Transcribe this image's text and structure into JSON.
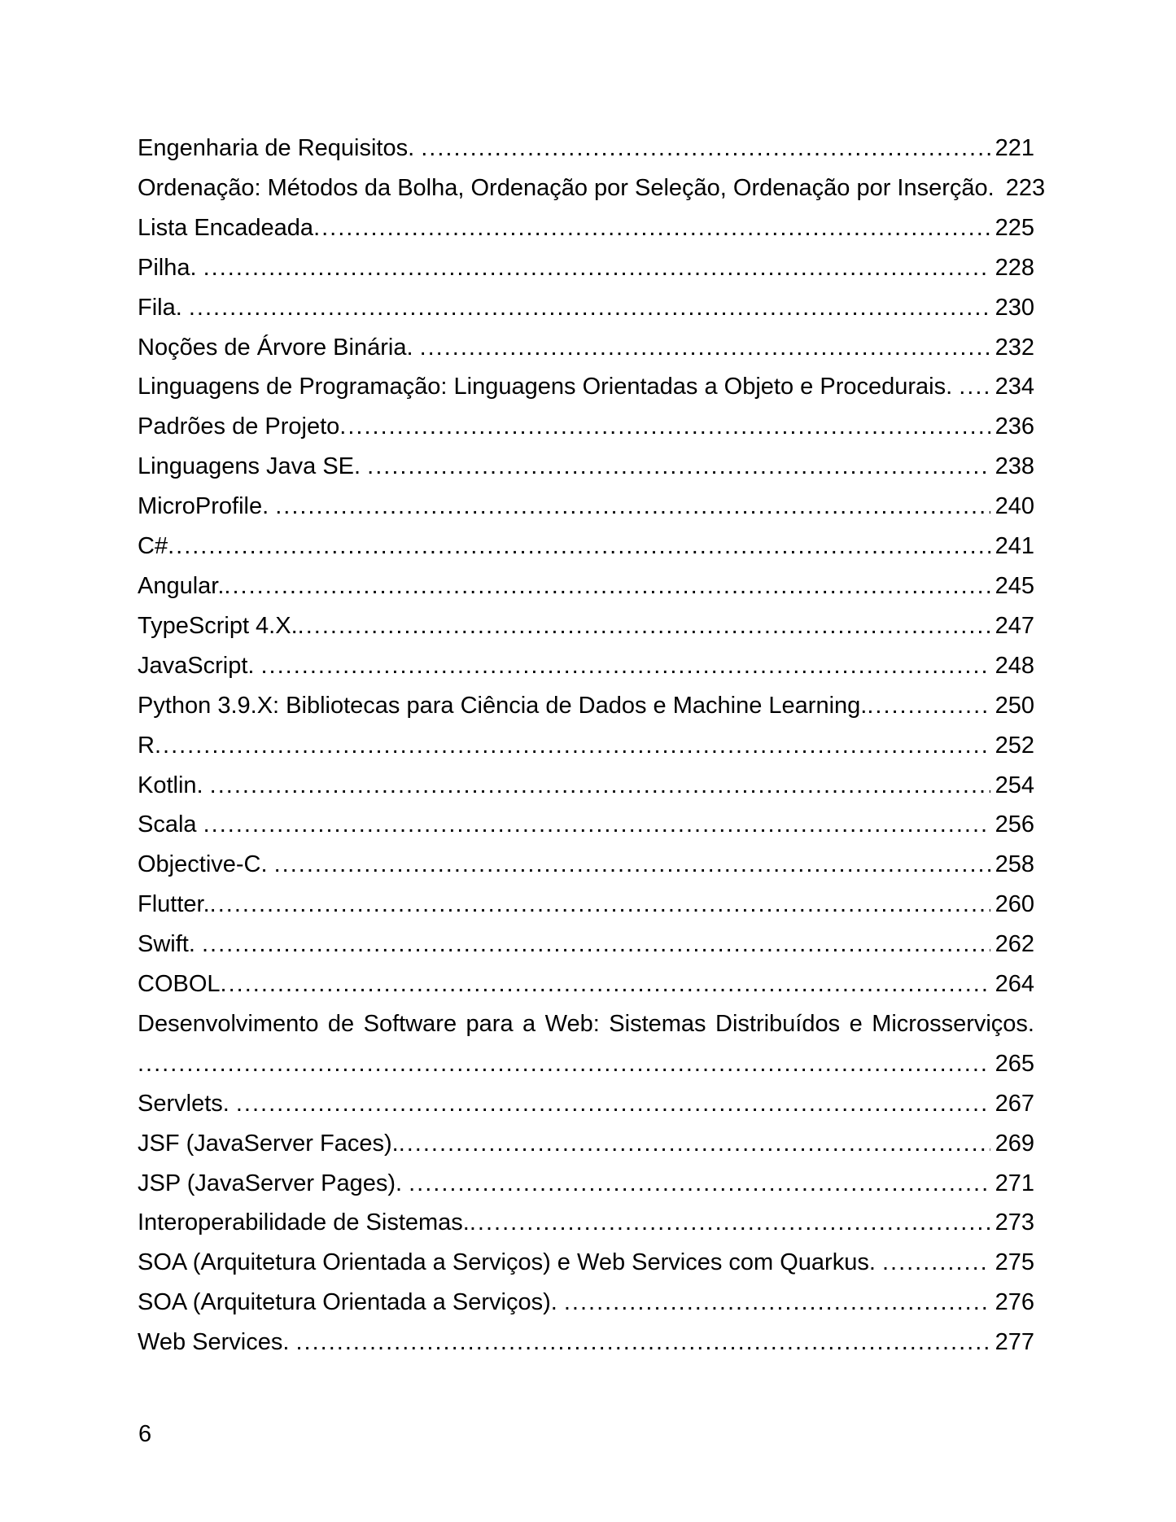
{
  "footer": {
    "page_number": "6"
  },
  "toc": {
    "entries": [
      {
        "title": "Engenharia de Requisitos. ",
        "page": "221",
        "leader": true
      },
      {
        "title": "Ordenação: Métodos da Bolha, Ordenação por Seleção, Ordenação por Inserção. ",
        "page": "223",
        "leader": false
      },
      {
        "title": "Lista Encadeada",
        "page": "225",
        "leader": true
      },
      {
        "title": "Pilha. ",
        "page": "228",
        "leader": true
      },
      {
        "title": "Fila. ",
        "page": "230",
        "leader": true
      },
      {
        "title": "Noções de Árvore Binária. ",
        "page": "232",
        "leader": true
      },
      {
        "title": "Linguagens de Programação: Linguagens Orientadas a Objeto e Procedurais. ",
        "page": "234",
        "leader": true
      },
      {
        "title": "Padrões de Projeto",
        "page": "236",
        "leader": true
      },
      {
        "title": "Linguagens Java SE. ",
        "page": "238",
        "leader": true
      },
      {
        "title": "MicroProfile. ",
        "page": "240",
        "leader": true
      },
      {
        "title": "C#",
        "page": "241",
        "leader": true
      },
      {
        "title": "Angular.",
        "page": "245",
        "leader": true
      },
      {
        "title": "TypeScript 4.X.",
        "page": "247",
        "leader": true
      },
      {
        "title": "JavaScript. ",
        "page": "248",
        "leader": true
      },
      {
        "title": "Python 3.9.X: Bibliotecas para Ciência de Dados e Machine Learning.",
        "page": "250",
        "leader": true
      },
      {
        "title": "R",
        "page": "252",
        "leader": true
      },
      {
        "title": "Kotlin. ",
        "page": "254",
        "leader": true
      },
      {
        "title": "Scala ",
        "page": "256",
        "leader": true
      },
      {
        "title": "Objective-C. ",
        "page": "258",
        "leader": true
      },
      {
        "title": "Flutter.",
        "page": "260",
        "leader": true
      },
      {
        "title": "Swift. ",
        "page": "262",
        "leader": true
      },
      {
        "title": "COBOL",
        "page": "264",
        "leader": true
      },
      {
        "title": "Desenvolvimento de Software para a Web: Sistemas Distribuídos e Microsserviços.",
        "page": "265",
        "leader": true,
        "wrap": true
      },
      {
        "title": "Servlets. ",
        "page": "267",
        "leader": true
      },
      {
        "title": "JSF (JavaServer Faces).",
        "page": "269",
        "leader": true
      },
      {
        "title": "JSP (JavaServer Pages). ",
        "page": "271",
        "leader": true
      },
      {
        "title": "Interoperabilidade de Sistemas.",
        "page": "273",
        "leader": true
      },
      {
        "title": "SOA (Arquitetura Orientada a Serviços) e Web Services com Quarkus. ",
        "page": "275",
        "leader": true
      },
      {
        "title": "SOA (Arquitetura Orientada a Serviços). ",
        "page": "276",
        "leader": true
      },
      {
        "title": "Web Services. ",
        "page": "277",
        "leader": true
      }
    ]
  }
}
